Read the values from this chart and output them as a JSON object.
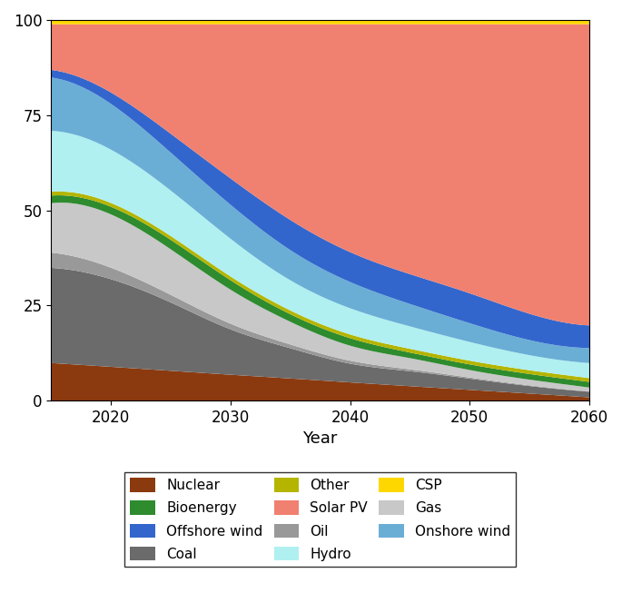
{
  "years": [
    2015,
    2020,
    2025,
    2030,
    2035,
    2040,
    2045,
    2050,
    2055,
    2060
  ],
  "layers": {
    "Nuclear": [
      10,
      9,
      8,
      7,
      6,
      5,
      4,
      3,
      2,
      1
    ],
    "Coal": [
      25,
      23,
      18,
      12,
      8,
      5,
      4,
      3,
      2,
      1.5
    ],
    "Oil": [
      4,
      3,
      2,
      1.5,
      1,
      0.8,
      0.5,
      0.3,
      0.2,
      0.1
    ],
    "Gas": [
      13,
      14,
      12,
      9,
      6,
      4,
      3,
      2,
      1.5,
      1
    ],
    "Bioenergy": [
      2,
      2,
      2.5,
      2.5,
      2,
      2,
      1.5,
      1.5,
      1.5,
      1.5
    ],
    "Other": [
      1,
      1,
      1,
      1,
      1,
      1,
      1,
      1,
      1,
      1
    ],
    "Hydro": [
      16,
      14,
      12,
      10,
      8,
      7,
      6,
      5,
      4,
      4
    ],
    "Onshore wind": [
      14,
      12,
      10,
      9,
      8,
      7,
      6,
      5,
      4,
      4
    ],
    "Offshore wind": [
      2,
      3,
      5,
      7,
      8,
      8,
      8,
      8,
      7,
      6
    ],
    "Solar PV": [
      12,
      18,
      29,
      41,
      52,
      61,
      67,
      72,
      77,
      80
    ],
    "CSP": [
      1,
      1,
      1,
      1,
      1,
      1,
      1,
      1,
      1,
      1
    ]
  },
  "colors": {
    "Nuclear": "#8B3A0F",
    "Coal": "#6b6b6b",
    "Oil": "#999999",
    "Gas": "#c8c8c8",
    "Bioenergy": "#2e8b2e",
    "Other": "#b5b500",
    "Hydro": "#b0f0f0",
    "Onshore wind": "#6aaed6",
    "Offshore wind": "#3366cc",
    "Solar PV": "#f08070",
    "CSP": "#ffd700"
  },
  "legend_order": [
    "Nuclear",
    "Bioenergy",
    "Offshore wind",
    "Coal",
    "Other",
    "Solar PV",
    "Oil",
    "Hydro",
    "CSP",
    "Gas",
    "Onshore wind"
  ],
  "xlabel": "Year",
  "ylim": [
    0,
    100
  ],
  "stack_order": [
    "Nuclear",
    "Coal",
    "Oil",
    "Gas",
    "Bioenergy",
    "Other",
    "Hydro",
    "Onshore wind",
    "Offshore wind",
    "Solar PV",
    "CSP"
  ]
}
